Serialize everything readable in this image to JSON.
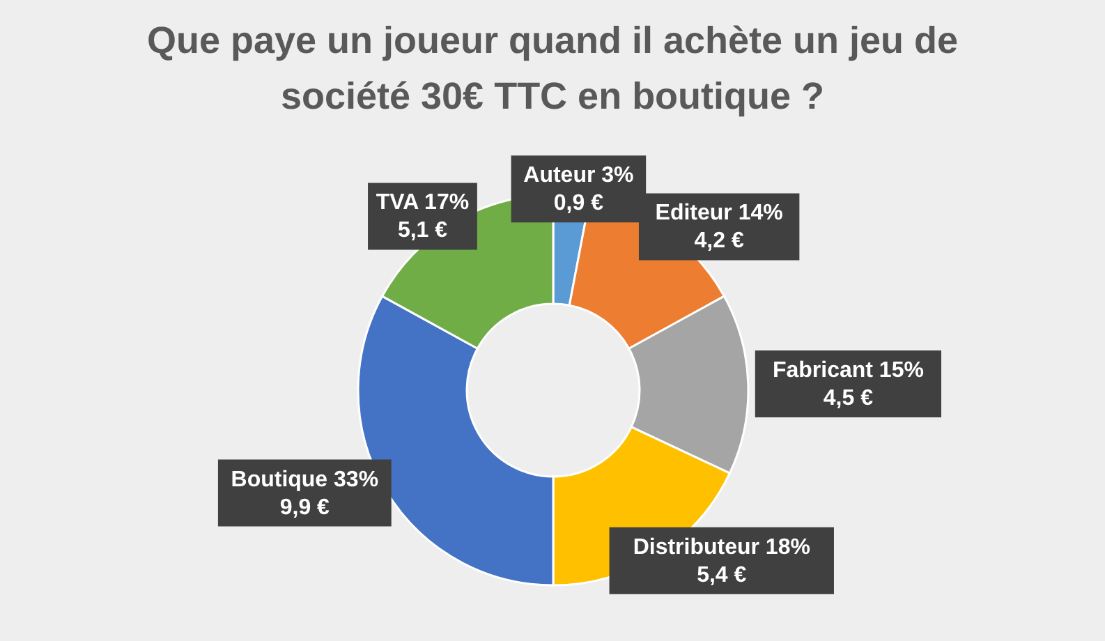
{
  "chart_data": {
    "type": "donut",
    "title": "Que paye un joueur quand il achète un jeu de société 30€ TTC en boutique ?",
    "categories": [
      "Auteur",
      "Editeur",
      "Fabricant",
      "Distributeur",
      "Boutique",
      "TVA"
    ],
    "values": [
      0.9,
      4.2,
      4.5,
      5.4,
      9.9,
      5.1
    ],
    "colors": [
      "#5b9bd5",
      "#ed7d31",
      "#a5a5a5",
      "#ffc000",
      "#4472c4",
      "#70ad47"
    ],
    "value_labels": [
      "3%\n0,9 €",
      "14%\n4,2 €",
      "15%\n4,5 €",
      "18%\n5,4 €",
      "33%\n9,9 €",
      "17%\n5,1 €"
    ]
  }
}
